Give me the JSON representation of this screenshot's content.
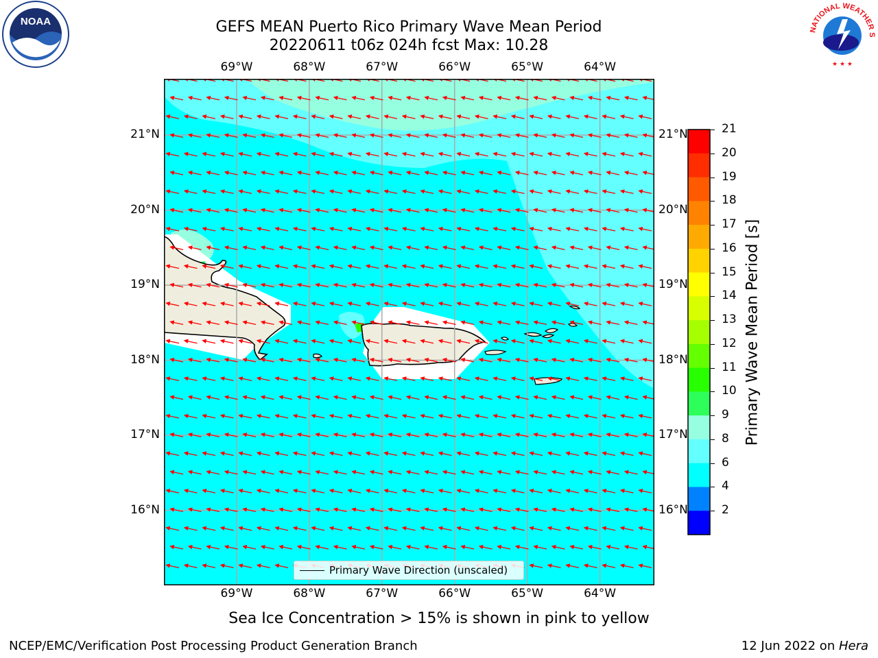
{
  "title": {
    "line1": "GEFS MEAN Puerto Rico Primary Wave Mean Period",
    "line2": "20220611 t06z 024h fcst   Max: 10.28"
  },
  "map": {
    "lon_ticks": [
      "69°W",
      "68°W",
      "67°W",
      "66°W",
      "65°W",
      "64°W"
    ],
    "lat_ticks": [
      "21°N",
      "20°N",
      "19°N",
      "18°N",
      "17°N",
      "16°N"
    ],
    "lon_range": [
      -70.0,
      -63.25
    ],
    "lat_range": [
      15.0,
      21.75
    ],
    "gridlines": true,
    "vector_field": "Primary Wave Direction",
    "vector_color": "#ff0000",
    "land_color": "#efedde",
    "ocean_base_color": "#00ffff"
  },
  "legend": {
    "label": "Primary Wave Direction (unscaled)"
  },
  "colorbar": {
    "label": "Primary Wave Mean Period [s]",
    "ticks": [
      "21",
      "20",
      "19",
      "18",
      "17",
      "16",
      "15",
      "14",
      "13",
      "12",
      "11",
      "10",
      "9",
      "8",
      "6",
      "4",
      "2"
    ],
    "colors": [
      "#ff0000",
      "#ff2d00",
      "#ff5a00",
      "#ff8200",
      "#ffaa00",
      "#ffd200",
      "#ffff00",
      "#d7ff00",
      "#a5ff00",
      "#64ff00",
      "#28ff00",
      "#2dfe5a",
      "#96ffe0",
      "#64ffff",
      "#00ffff",
      "#0082ff",
      "#0000ff"
    ]
  },
  "logos": {
    "left": "NOAA",
    "right": "NATIONAL WEATHER SERVICE"
  },
  "footer": {
    "note": "Sea Ice Concentration > 15% is shown in pink to yellow",
    "left": "NCEP/EMC/Verification Post Processing Product Generation Branch",
    "right_prefix": "12 Jun 2022 on ",
    "right_host": "Hera"
  }
}
